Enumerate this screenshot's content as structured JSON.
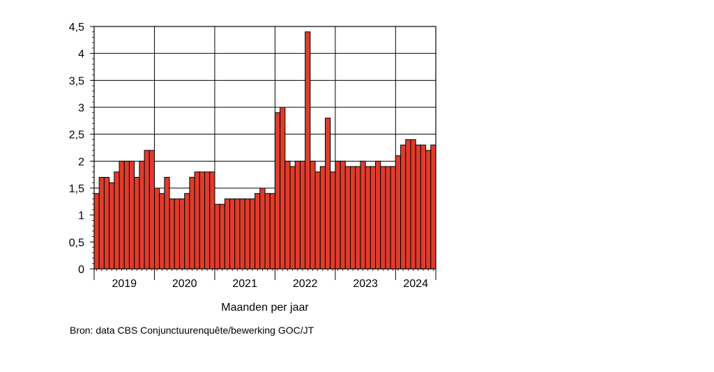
{
  "chart_data": {
    "type": "bar",
    "title": "",
    "xlabel": "Maanden per jaar",
    "ylabel": "",
    "ylim": [
      0,
      4.5
    ],
    "y_ticks": [
      "0",
      "0,5",
      "1",
      "1,5",
      "2",
      "2,5",
      "3",
      "3,5",
      "4",
      "4,5"
    ],
    "grid": true,
    "bar_color": "#e03c2c",
    "years": [
      "2019",
      "2020",
      "2021",
      "2022",
      "2023",
      "2024"
    ],
    "series": [
      {
        "values": [
          1.4,
          1.7,
          1.7,
          1.6,
          1.8,
          2.0,
          2.0,
          2.0,
          1.7,
          2.0,
          2.2,
          2.2,
          1.5,
          1.4,
          1.7,
          1.3,
          1.3,
          1.3,
          1.4,
          1.7,
          1.8,
          1.8,
          1.8,
          1.8,
          1.2,
          1.2,
          1.3,
          1.3,
          1.3,
          1.3,
          1.3,
          1.3,
          1.4,
          1.5,
          1.4,
          1.4,
          2.9,
          3.0,
          2.0,
          1.9,
          2.0,
          2.0,
          4.4,
          2.0,
          1.8,
          1.9,
          2.8,
          1.8,
          2.0,
          2.0,
          1.9,
          1.9,
          1.9,
          2.0,
          1.9,
          1.9,
          2.0,
          1.9,
          1.9,
          1.9,
          2.1,
          2.3,
          2.4,
          2.4,
          2.3,
          2.3,
          2.2,
          2.3
        ]
      }
    ]
  },
  "source_note": "Bron: data CBS Conjunctuurenquête/bewerking GOC/JT"
}
